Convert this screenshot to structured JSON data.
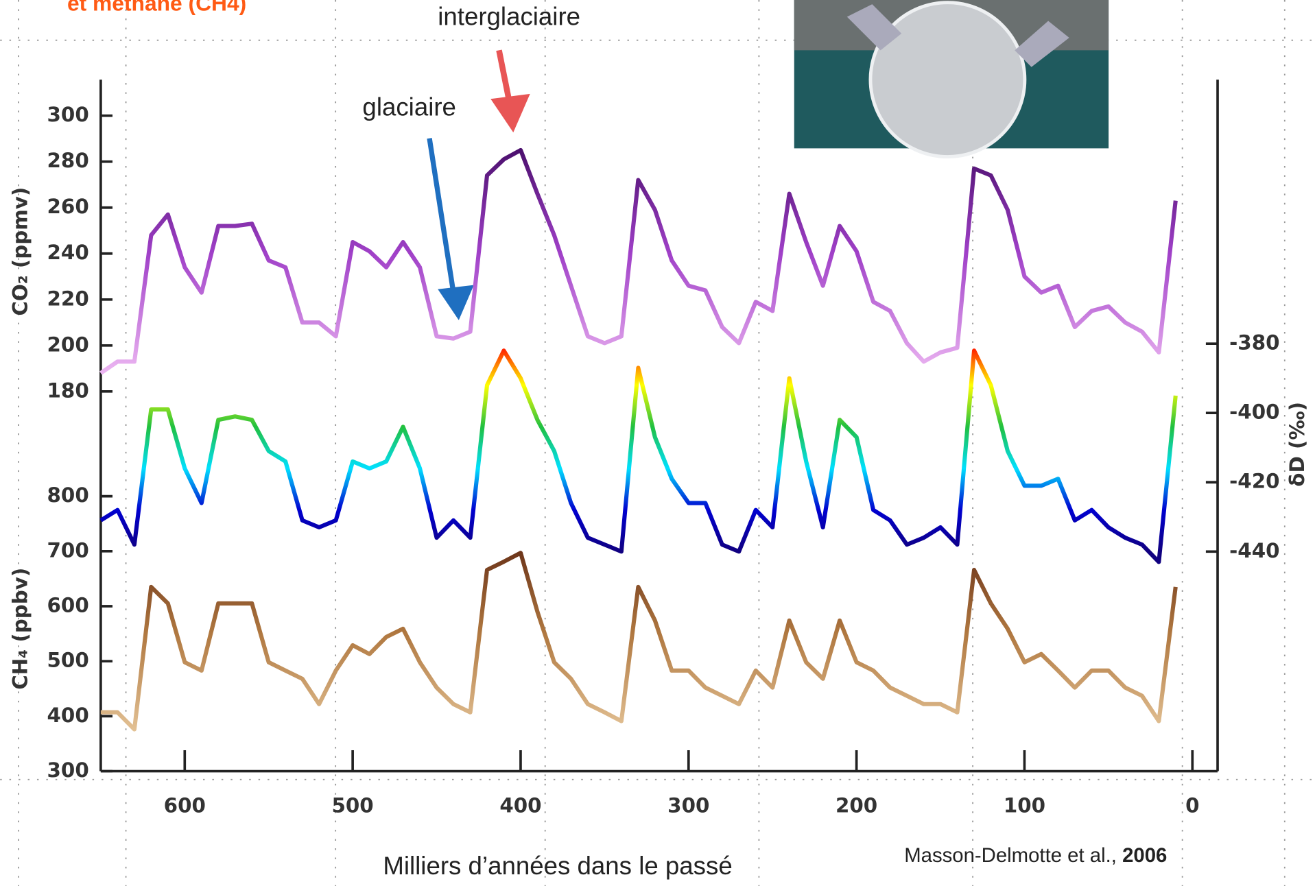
{
  "chart_data": {
    "type": "line",
    "title": "et méthane (CH4)",
    "annotations": [
      "interglaciaire",
      "glaciaire"
    ],
    "source": "Masson-Delmotte et al.,",
    "source_year": "2006",
    "xlabel": "Milliers d’années dans le passé",
    "ylabel": "CO₂ (ppmv)",
    "y2label": "δD (‰)",
    "y3label": "CH₄ (ppbv)",
    "xlim": [
      650,
      -15
    ],
    "xticks": [
      600,
      500,
      400,
      300,
      200,
      100,
      0
    ],
    "ylim": [
      180,
      300
    ],
    "yticks": [
      180,
      200,
      220,
      240,
      260,
      280,
      300
    ],
    "y2lim": [
      -440,
      -380
    ],
    "y2ticks": [
      -380,
      -400,
      -420,
      -440
    ],
    "y3lim": [
      300,
      800
    ],
    "y3ticks": [
      300,
      400,
      500,
      600,
      700,
      800
    ],
    "grid": false,
    "x": [
      650,
      640,
      630,
      620,
      610,
      600,
      590,
      580,
      570,
      560,
      550,
      540,
      530,
      520,
      510,
      500,
      490,
      480,
      470,
      460,
      450,
      440,
      430,
      420,
      410,
      400,
      390,
      380,
      370,
      360,
      350,
      340,
      330,
      320,
      310,
      300,
      290,
      280,
      270,
      260,
      250,
      240,
      230,
      220,
      210,
      200,
      190,
      180,
      170,
      160,
      150,
      140,
      130,
      120,
      110,
      100,
      90,
      80,
      70,
      60,
      50,
      40,
      30,
      20,
      10
    ],
    "series": [
      {
        "name": "CO₂",
        "axis": "y",
        "color": [
          "#f8c8f8",
          "#a040c8",
          "#300050"
        ],
        "values": [
          188,
          193,
          193,
          248,
          257,
          234,
          223,
          252,
          252,
          253,
          237,
          234,
          210,
          210,
          204,
          245,
          241,
          234,
          245,
          234,
          204,
          203,
          206,
          274,
          281,
          285,
          266,
          248,
          226,
          204,
          201,
          204,
          272,
          259,
          237,
          226,
          224,
          208,
          201,
          219,
          215,
          266,
          245,
          226,
          252,
          241,
          219,
          215,
          201,
          193,
          197,
          199,
          277,
          274,
          259,
          230,
          223,
          226,
          208,
          215,
          217,
          210,
          206,
          197,
          263
        ]
      },
      {
        "name": "δD",
        "axis": "y2",
        "color": [
          "#100080",
          "#0000d0",
          "#00e0ff",
          "#20c040",
          "#ffff00",
          "#ff0000"
        ],
        "values": [
          -431,
          -428,
          -438,
          -399,
          -399,
          -416,
          -426,
          -402,
          -401,
          -402,
          -411,
          -414,
          -431,
          -433,
          -431,
          -414,
          -416,
          -414,
          -404,
          -416,
          -436,
          -431,
          -436,
          -392,
          -382,
          -390,
          -402,
          -411,
          -426,
          -436,
          -438,
          -440,
          -387,
          -407,
          -419,
          -426,
          -426,
          -438,
          -440,
          -428,
          -433,
          -390,
          -414,
          -433,
          -402,
          -407,
          -428,
          -431,
          -438,
          -436,
          -433,
          -438,
          -382,
          -392,
          -411,
          -421,
          -421,
          -419,
          -431,
          -428,
          -433,
          -436,
          -438,
          -443,
          -395
        ]
      },
      {
        "name": "CH₄",
        "axis": "y3",
        "color": [
          "#f8e0b8",
          "#b07840",
          "#400800"
        ],
        "values": [
          407,
          407,
          376,
          635,
          605,
          498,
          483,
          605,
          605,
          605,
          498,
          483,
          468,
          422,
          483,
          529,
          513,
          544,
          559,
          498,
          452,
          422,
          407,
          666,
          681,
          697,
          590,
          498,
          468,
          422,
          407,
          391,
          635,
          574,
          483,
          483,
          452,
          437,
          422,
          483,
          452,
          574,
          498,
          468,
          574,
          498,
          483,
          452,
          437,
          422,
          422,
          407,
          666,
          605,
          559,
          498,
          513,
          483,
          452,
          483,
          483,
          452,
          437,
          391,
          635
        ]
      }
    ]
  }
}
